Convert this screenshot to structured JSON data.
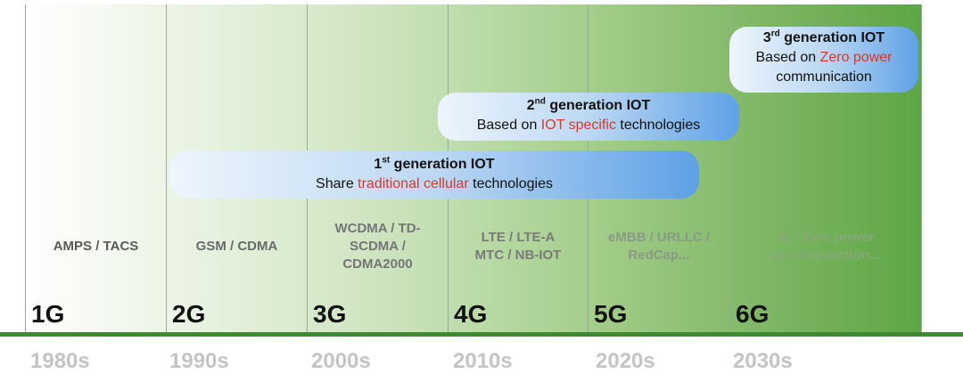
{
  "generations": [
    {
      "label": "1G",
      "tech": "AMPS / TACS",
      "decade": "1980s",
      "tech_color": "#5a5a5a"
    },
    {
      "label": "2G",
      "tech": "GSM / CDMA",
      "decade": "1990s",
      "tech_color": "#6a6a6a"
    },
    {
      "label": "3G",
      "tech": "WCDMA / TD-\nSCDMA /\nCDMA2000",
      "decade": "2000s",
      "tech_color": "#757575"
    },
    {
      "label": "4G",
      "tech": "LTE / LTE-A\nMTC / NB-IOT",
      "decade": "2010s",
      "tech_color": "#7a7a7a"
    },
    {
      "label": "5G",
      "tech": "eMBB / URLLC /\nRedCap...",
      "decade": "2020s",
      "tech_color": "#8a9a84"
    },
    {
      "label": "6G",
      "tech": "AI / Zero power\ncommuniaction...",
      "decade": "2030s",
      "tech_color": "#86a878"
    }
  ],
  "bubbles": {
    "iot1": {
      "num": "1",
      "sup": "st",
      "title": "generation IOT",
      "line_pre": "Share ",
      "line_hl": "traditional cellular",
      "line_post": " technologies"
    },
    "iot2": {
      "num": "2",
      "sup": "nd",
      "title": "generation IOT",
      "line_pre": "Based on ",
      "line_hl": "IOT specific",
      "line_post": " technologies"
    },
    "iot3": {
      "num": "3",
      "sup": "rd",
      "title": "generation IOT",
      "line_pre": "Based on ",
      "line_hl": "Zero power",
      "line_post": "communication"
    }
  },
  "colors": {
    "highlight": "#d23a2b",
    "ground": "#3f8a30",
    "decade": "#c4c4c4"
  }
}
